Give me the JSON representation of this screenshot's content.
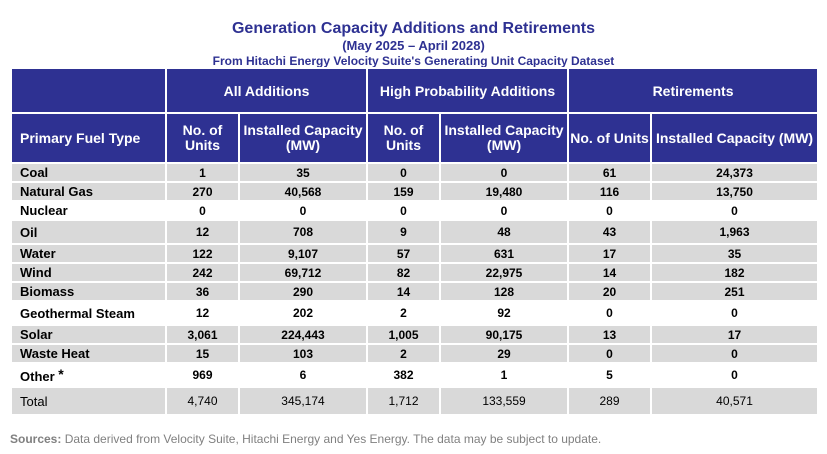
{
  "title": "Generation Capacity Additions and Retirements",
  "subtitle": "(May 2025 – April 2028)",
  "source_line": "From Hitachi Energy Velocity Suite's Generating Unit Capacity Dataset",
  "groups": {
    "all": "All Additions",
    "high": "High Probability Additions",
    "ret": "Retirements"
  },
  "columns": {
    "fuel": "Primary Fuel Type",
    "units": "No. of Units",
    "capacity": "Installed Capacity (MW)"
  },
  "rows": [
    {
      "fuel": "Coal",
      "all_units": "1",
      "all_cap": "35",
      "hp_units": "0",
      "hp_cap": "0",
      "ret_units": "61",
      "ret_cap": "24,373"
    },
    {
      "fuel": "Natural Gas",
      "all_units": "270",
      "all_cap": "40,568",
      "hp_units": "159",
      "hp_cap": "19,480",
      "ret_units": "116",
      "ret_cap": "13,750"
    },
    {
      "fuel": "Nuclear",
      "all_units": "0",
      "all_cap": "0",
      "hp_units": "0",
      "hp_cap": "0",
      "ret_units": "0",
      "ret_cap": "0"
    },
    {
      "fuel": "Oil",
      "all_units": "12",
      "all_cap": "708",
      "hp_units": "9",
      "hp_cap": "48",
      "ret_units": "43",
      "ret_cap": "1,963"
    },
    {
      "fuel": "Water",
      "all_units": "122",
      "all_cap": "9,107",
      "hp_units": "57",
      "hp_cap": "631",
      "ret_units": "17",
      "ret_cap": "35"
    },
    {
      "fuel": "Wind",
      "all_units": "242",
      "all_cap": "69,712",
      "hp_units": "82",
      "hp_cap": "22,975",
      "ret_units": "14",
      "ret_cap": "182"
    },
    {
      "fuel": "Biomass",
      "all_units": "36",
      "all_cap": "290",
      "hp_units": "14",
      "hp_cap": "128",
      "ret_units": "20",
      "ret_cap": "251"
    },
    {
      "fuel": "Geothermal Steam",
      "all_units": "12",
      "all_cap": "202",
      "hp_units": "2",
      "hp_cap": "92",
      "ret_units": "0",
      "ret_cap": "0"
    },
    {
      "fuel": "Solar",
      "all_units": "3,061",
      "all_cap": "224,443",
      "hp_units": "1,005",
      "hp_cap": "90,175",
      "ret_units": "13",
      "ret_cap": "17"
    },
    {
      "fuel": "Waste Heat",
      "all_units": "15",
      "all_cap": "103",
      "hp_units": "2",
      "hp_cap": "29",
      "ret_units": "0",
      "ret_cap": "0"
    },
    {
      "fuel": "Other",
      "marker": "*",
      "all_units": "969",
      "all_cap": "6",
      "hp_units": "382",
      "hp_cap": "1",
      "ret_units": "5",
      "ret_cap": "0"
    }
  ],
  "total": {
    "fuel": "Total",
    "all_units": "4,740",
    "all_cap": "345,174",
    "hp_units": "1,712",
    "hp_cap": "133,559",
    "ret_units": "289",
    "ret_cap": "40,571"
  },
  "sources": {
    "label": "Sources:",
    "text": "Data derived from Velocity Suite, Hitachi Energy and Yes Energy.  The data may be subject to update."
  },
  "colors": {
    "header_bg": "#2e3192",
    "row_shade": "#d9d9d9",
    "title": "#2e3192"
  }
}
